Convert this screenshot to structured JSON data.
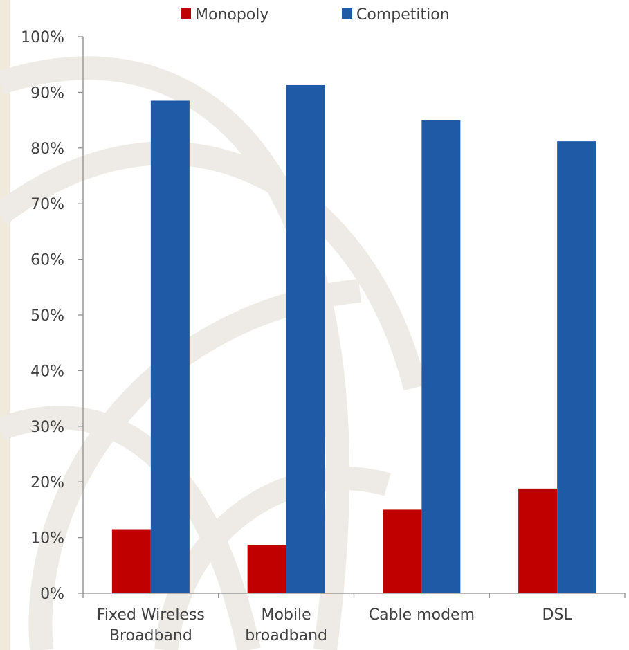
{
  "chart_data": {
    "type": "bar",
    "categories": [
      [
        "Fixed Wireless",
        "Broadband"
      ],
      [
        "Mobile",
        "broadband"
      ],
      [
        "Cable modem"
      ],
      [
        "DSL"
      ]
    ],
    "series": [
      {
        "name": "Monopoly",
        "color": "#c00000",
        "values": [
          11.5,
          8.7,
          15.0,
          18.8
        ]
      },
      {
        "name": "Competition",
        "color": "#1f5aa6",
        "values": [
          88.5,
          91.3,
          85.0,
          81.2
        ]
      }
    ],
    "y_ticks": [
      "0%",
      "10%",
      "20%",
      "30%",
      "40%",
      "50%",
      "60%",
      "70%",
      "80%",
      "90%",
      "100%"
    ],
    "ylim": [
      0,
      100
    ],
    "grid": false,
    "legend_position": "top-center"
  },
  "legend": {
    "monopoly_label": "Monopoly",
    "competition_label": "Competition"
  }
}
